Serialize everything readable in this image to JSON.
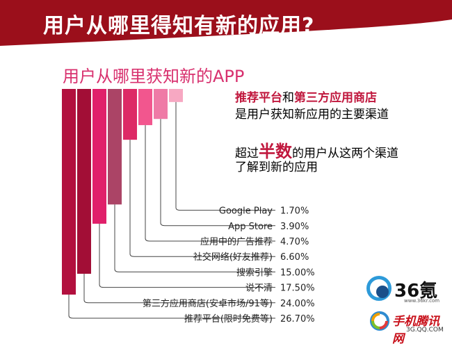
{
  "slide": {
    "title": "用户从哪里得知有新的应用?",
    "bg_color": "#ffffff",
    "header_color": "#9b0f1b"
  },
  "side_text": {
    "line1_a": "推荐平台",
    "line1_b": "和",
    "line1_c": "第三方应用商店",
    "line2": "是用户获知新应用的主要渠道",
    "line3_a": "超过",
    "line3_b": "半数",
    "line3_c": "的用户从这两个渠道",
    "line4": "了解到新的应用"
  },
  "logos": {
    "logo36_text": "36氪",
    "logo36_sub": "www.36kr.com",
    "logoqq_text": "手机腾讯网",
    "logoqq_sub": "3G.QQ.COM"
  },
  "chart_data": {
    "type": "bar",
    "title": "用户从哪里获知新的APP",
    "categories": [
      "推荐平台(限时免费等)",
      "第三方应用商店(安卓市场/91等)",
      "说不清",
      "搜索引擎",
      "社交网络(好友推荐)",
      "应用中的广告推荐",
      "App Store",
      "Google Play"
    ],
    "values": [
      26.7,
      24.0,
      17.5,
      15.0,
      6.6,
      4.7,
      3.9,
      1.7
    ],
    "value_labels": [
      "26.70%",
      "24.00%",
      "17.50%",
      "15.00%",
      "6.60%",
      "4.70%",
      "3.90%",
      "1.70%"
    ],
    "colors": [
      "#b2103e",
      "#a20e36",
      "#e0206a",
      "#ab4466",
      "#dd2a66",
      "#f2568e",
      "#ef7aa6",
      "#f7a8c2"
    ]
  }
}
